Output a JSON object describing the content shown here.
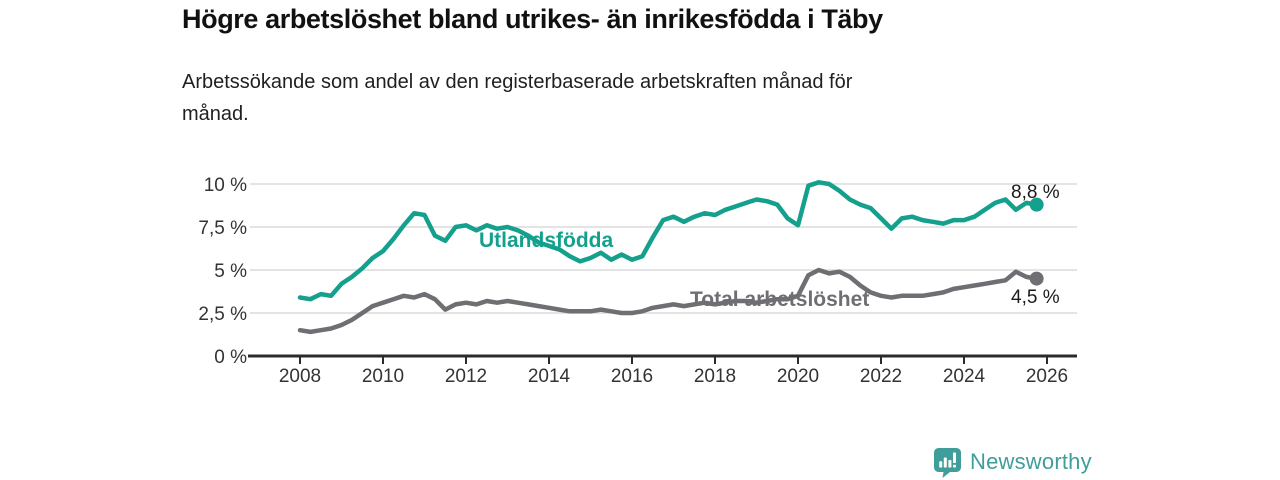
{
  "title": "Högre arbetslöshet bland utrikes- än inrikesfödda i Täby",
  "subtitle": "Arbetssökande som andel av den registerbaserade arbetskraften månad för\nmånad.",
  "footer": {
    "brand": "Newsworthy",
    "logo_icon": "newsworthy-speech-bubble-bar-chart-icon",
    "brand_color": "#3f9e99"
  },
  "colors": {
    "series_foreign_born": "#14a08d",
    "series_total": "#6f6f73",
    "gridline": "#dcdcdc",
    "axis": "#2b2b2b",
    "tick_label": "#333333",
    "annotation_text": "#1a1a1a"
  },
  "chart_data": {
    "type": "line",
    "title": "Högre arbetslöshet bland utrikes- än inrikesfödda i Täby",
    "subtitle": "Arbetssökande som andel av den registerbaserade arbetskraften månad för månad.",
    "xlabel": "",
    "ylabel": "",
    "grid": "horizontal",
    "legend_position": "inline-labels",
    "x_ticks": [
      2008,
      2010,
      2012,
      2014,
      2016,
      2018,
      2020,
      2022,
      2024,
      2026
    ],
    "y_ticks": [
      {
        "value": 0,
        "label": "0 %"
      },
      {
        "value": 2.5,
        "label": "2,5 %"
      },
      {
        "value": 5,
        "label": "5 %"
      },
      {
        "value": 7.5,
        "label": "7,5 %"
      },
      {
        "value": 10,
        "label": "10 %"
      }
    ],
    "ylim": [
      0,
      10.4
    ],
    "xlim": [
      2007.2,
      2026.7
    ],
    "x": [
      2008.0,
      2008.25,
      2008.5,
      2008.75,
      2009.0,
      2009.25,
      2009.5,
      2009.75,
      2010.0,
      2010.25,
      2010.5,
      2010.75,
      2011.0,
      2011.25,
      2011.5,
      2011.75,
      2012.0,
      2012.25,
      2012.5,
      2012.75,
      2013.0,
      2013.25,
      2013.5,
      2013.75,
      2014.0,
      2014.25,
      2014.5,
      2014.75,
      2015.0,
      2015.25,
      2015.5,
      2015.75,
      2016.0,
      2016.25,
      2016.5,
      2016.75,
      2017.0,
      2017.25,
      2017.5,
      2017.75,
      2018.0,
      2018.25,
      2018.5,
      2018.75,
      2019.0,
      2019.25,
      2019.5,
      2019.75,
      2020.0,
      2020.25,
      2020.5,
      2020.75,
      2021.0,
      2021.25,
      2021.5,
      2021.75,
      2022.0,
      2022.25,
      2022.5,
      2022.75,
      2023.0,
      2023.25,
      2023.5,
      2023.75,
      2024.0,
      2024.25,
      2024.5,
      2024.75,
      2025.0,
      2025.25,
      2025.5,
      2025.75
    ],
    "series": [
      {
        "name": "Utlandsfödda",
        "color": "#14a08d",
        "end_label": "8,8 %",
        "end_value": 8.8,
        "values": [
          3.4,
          3.3,
          3.6,
          3.5,
          4.2,
          4.6,
          5.1,
          5.7,
          6.1,
          6.8,
          7.6,
          8.3,
          8.2,
          7.0,
          6.7,
          7.5,
          7.6,
          7.3,
          7.6,
          7.4,
          7.5,
          7.3,
          7.0,
          6.6,
          6.4,
          6.2,
          5.8,
          5.5,
          5.7,
          6.0,
          5.6,
          5.9,
          5.6,
          5.8,
          6.9,
          7.9,
          8.1,
          7.8,
          8.1,
          8.3,
          8.2,
          8.5,
          8.7,
          8.9,
          9.1,
          9.0,
          8.8,
          8.0,
          7.6,
          9.9,
          10.1,
          10.0,
          9.6,
          9.1,
          8.8,
          8.6,
          8.0,
          7.4,
          8.0,
          8.1,
          7.9,
          7.8,
          7.7,
          7.9,
          7.9,
          8.1,
          8.5,
          8.9,
          9.1,
          8.5,
          8.9,
          8.8
        ]
      },
      {
        "name": "Total arbetslöshet",
        "color": "#6f6f73",
        "end_label": "4,5 %",
        "end_value": 4.5,
        "values": [
          1.5,
          1.4,
          1.5,
          1.6,
          1.8,
          2.1,
          2.5,
          2.9,
          3.1,
          3.3,
          3.5,
          3.4,
          3.6,
          3.3,
          2.7,
          3.0,
          3.1,
          3.0,
          3.2,
          3.1,
          3.2,
          3.1,
          3.0,
          2.9,
          2.8,
          2.7,
          2.6,
          2.6,
          2.6,
          2.7,
          2.6,
          2.5,
          2.5,
          2.6,
          2.8,
          2.9,
          3.0,
          2.9,
          3.0,
          3.1,
          3.0,
          3.1,
          3.2,
          3.2,
          3.1,
          3.2,
          3.3,
          3.3,
          3.5,
          4.7,
          5.0,
          4.8,
          4.9,
          4.6,
          4.1,
          3.7,
          3.5,
          3.4,
          3.5,
          3.5,
          3.5,
          3.6,
          3.7,
          3.9,
          4.0,
          4.1,
          4.2,
          4.3,
          4.4,
          4.9,
          4.6,
          4.5
        ]
      }
    ]
  }
}
